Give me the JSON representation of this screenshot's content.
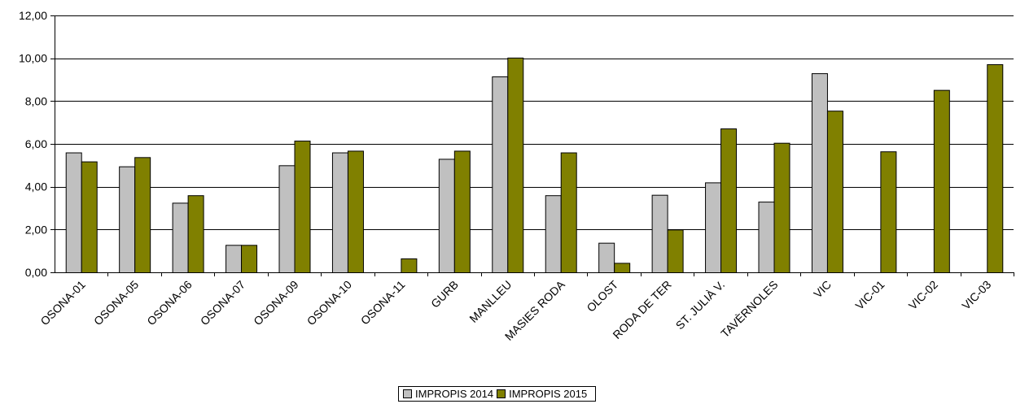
{
  "chart_data": {
    "type": "bar",
    "categories": [
      "OSONA-01",
      "OSONA-05",
      "OSONA-06",
      "OSONA-07",
      "OSONA-09",
      "OSONA-10",
      "OSONA-11",
      "GURB",
      "MANLLEU",
      "MASIES RODA",
      "OLOST",
      "RODA DE TER",
      "ST. JULIÀ V.",
      "TAVÈRNOLES",
      "VIC",
      "VIC-01",
      "VIC-02",
      "VIC-03"
    ],
    "series": [
      {
        "name": "IMPROPIS 2014",
        "color": "#c0c0c0",
        "values": [
          5.6,
          4.95,
          3.25,
          1.28,
          5.0,
          5.6,
          null,
          5.3,
          9.15,
          3.6,
          1.38,
          3.62,
          4.2,
          3.3,
          9.3,
          null,
          null,
          null
        ]
      },
      {
        "name": "IMPROPIS 2015",
        "color": "#808000",
        "values": [
          5.18,
          5.38,
          3.6,
          1.28,
          6.15,
          5.68,
          0.65,
          5.68,
          10.03,
          5.6,
          0.44,
          2.0,
          6.72,
          6.05,
          7.55,
          5.65,
          8.52,
          9.72
        ]
      }
    ],
    "ylim": [
      0,
      12
    ],
    "yticks": [
      "0,00",
      "2,00",
      "4,00",
      "6,00",
      "8,00",
      "10,00",
      "12,00"
    ],
    "ytick_values": [
      0,
      2,
      4,
      6,
      8,
      10,
      12
    ],
    "grid": true,
    "legend_position": "bottom"
  }
}
